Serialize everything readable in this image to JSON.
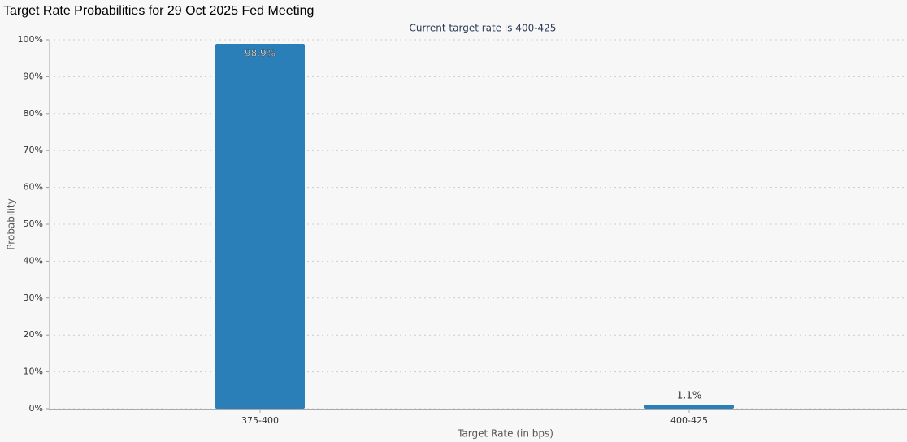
{
  "chart_data": {
    "type": "bar",
    "title": "Target Rate Probabilities for 29 Oct 2025 Fed Meeting",
    "subtitle": "Current target rate is 400-425",
    "x_label": "Target Rate (in bps)",
    "y_label": "Probability",
    "categories": [
      "375-400",
      "400-425"
    ],
    "values": [
      98.9,
      1.1
    ],
    "value_labels": [
      "98.9%",
      "1.1%"
    ],
    "color": "#2a7fb8",
    "ylim": [
      0,
      100
    ],
    "yticks": [
      {
        "value": 0,
        "label": "0%"
      },
      {
        "value": 10,
        "label": "10%"
      },
      {
        "value": 20,
        "label": "20%"
      },
      {
        "value": 30,
        "label": "30%"
      },
      {
        "value": 40,
        "label": "40%"
      },
      {
        "value": 50,
        "label": "50%"
      },
      {
        "value": 60,
        "label": "60%"
      },
      {
        "value": 70,
        "label": "70%"
      },
      {
        "value": 80,
        "label": "80%"
      },
      {
        "value": 90,
        "label": "90%"
      },
      {
        "value": 100,
        "label": "100%"
      }
    ],
    "grid": true
  }
}
